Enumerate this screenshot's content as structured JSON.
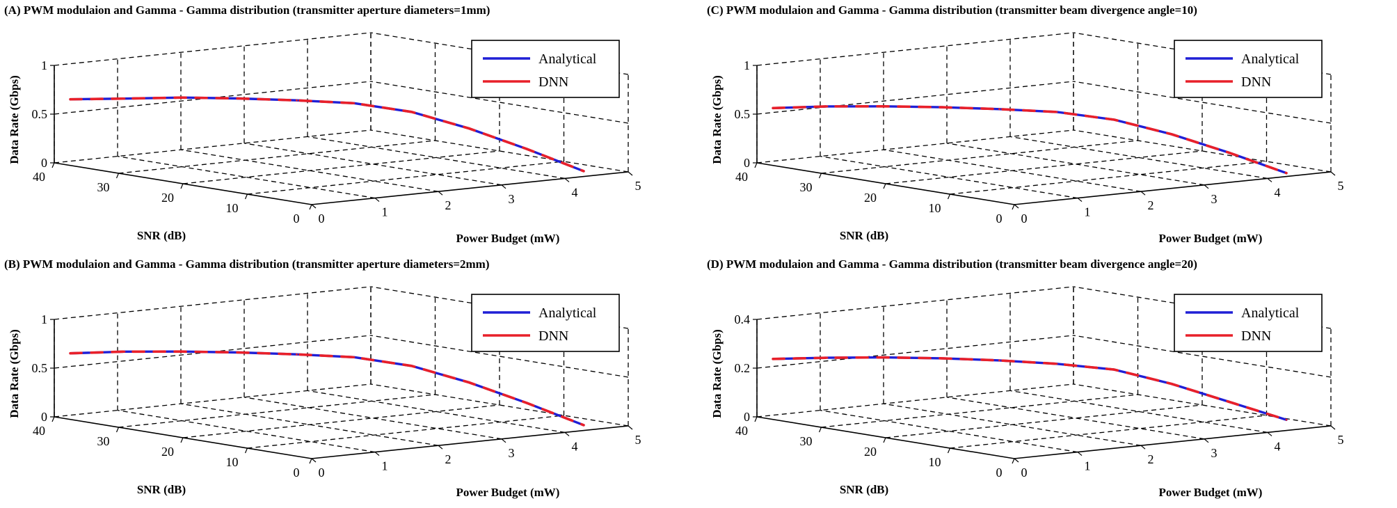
{
  "colors": {
    "analytical": "#1f1fd6",
    "dnn": "#e8202a"
  },
  "chart_data": [
    {
      "type": "line",
      "title": "(A) PWM modulaion and Gamma - Gamma distribution (transmitter aperture diameters=1mm)",
      "xlabel": "Power Budget (mW)",
      "ylabel": "SNR (dB)",
      "zlabel": "Data Rate (Gbps)",
      "xlim": [
        0,
        5
      ],
      "ylim": [
        0,
        40
      ],
      "zlim": [
        0,
        1
      ],
      "xticks": [
        "0",
        "1",
        "2",
        "3",
        "4",
        "5"
      ],
      "yticks": [
        "0",
        "10",
        "20",
        "30",
        "40"
      ],
      "zticks": [
        "0",
        "0.5",
        "1"
      ],
      "grid": true,
      "legend": "top-right",
      "x": [
        0.05,
        0.5,
        1.0,
        1.5,
        2.0,
        2.5,
        3.0,
        3.5,
        4.0,
        4.5
      ],
      "y": [
        38,
        34,
        30,
        26,
        22,
        18,
        14,
        10,
        6,
        2
      ],
      "series": [
        {
          "name": "Analytical",
          "values": [
            0.67,
            0.69,
            0.71,
            0.71,
            0.7,
            0.68,
            0.6,
            0.44,
            0.24,
            0.02
          ]
        },
        {
          "name": "DNN",
          "values": [
            0.67,
            0.69,
            0.71,
            0.71,
            0.7,
            0.68,
            0.6,
            0.44,
            0.24,
            0.02
          ]
        }
      ]
    },
    {
      "type": "line",
      "title": "(C) PWM modulaion and Gamma - Gamma distribution (transmitter beam divergence angle=10)",
      "xlabel": "Power Budget (mW)",
      "ylabel": "SNR (dB)",
      "zlabel": "Data Rate (Gbps)",
      "xlim": [
        0,
        5
      ],
      "ylim": [
        0,
        40
      ],
      "zlim": [
        0,
        1
      ],
      "xticks": [
        "0",
        "1",
        "2",
        "3",
        "4",
        "5"
      ],
      "yticks": [
        "0",
        "10",
        "20",
        "30",
        "40"
      ],
      "zticks": [
        "0",
        "0.5",
        "1"
      ],
      "grid": true,
      "legend": "top-right",
      "x": [
        0.05,
        0.5,
        1.0,
        1.5,
        2.0,
        2.5,
        3.0,
        3.5,
        4.0,
        4.5
      ],
      "y": [
        38,
        34,
        30,
        26,
        22,
        18,
        14,
        10,
        6,
        2
      ],
      "series": [
        {
          "name": "Analytical",
          "values": [
            0.58,
            0.61,
            0.62,
            0.62,
            0.61,
            0.59,
            0.52,
            0.38,
            0.2,
            0.0
          ]
        },
        {
          "name": "DNN",
          "values": [
            0.58,
            0.61,
            0.62,
            0.62,
            0.61,
            0.59,
            0.52,
            0.38,
            0.2,
            0.0
          ]
        }
      ]
    },
    {
      "type": "line",
      "title": "(B) PWM modulaion and Gamma - Gamma distribution (transmitter aperture diameters=2mm)",
      "xlabel": "Power Budget (mW)",
      "ylabel": "SNR (dB)",
      "zlabel": "Data Rate (Gbps)",
      "xlim": [
        0,
        5
      ],
      "ylim": [
        0,
        40
      ],
      "zlim": [
        0,
        1
      ],
      "xticks": [
        "0",
        "1",
        "2",
        "3",
        "4",
        "5"
      ],
      "yticks": [
        "0",
        "10",
        "20",
        "30",
        "40"
      ],
      "zticks": [
        "0",
        "0.5",
        "1"
      ],
      "grid": true,
      "legend": "top-right",
      "x": [
        0.05,
        0.5,
        1.0,
        1.5,
        2.0,
        2.5,
        3.0,
        3.5,
        4.0,
        4.5
      ],
      "y": [
        38,
        34,
        30,
        26,
        22,
        18,
        14,
        10,
        6,
        2
      ],
      "series": [
        {
          "name": "Analytical",
          "values": [
            0.67,
            0.7,
            0.71,
            0.71,
            0.7,
            0.68,
            0.6,
            0.44,
            0.24,
            0.02
          ]
        },
        {
          "name": "DNN",
          "values": [
            0.67,
            0.7,
            0.71,
            0.71,
            0.7,
            0.68,
            0.6,
            0.44,
            0.24,
            0.02
          ]
        }
      ]
    },
    {
      "type": "line",
      "title": "(D) PWM modulaion and Gamma - Gamma distribution (transmitter beam divergence angle=20)",
      "xlabel": "Power Budget (mW)",
      "ylabel": "SNR (dB)",
      "zlabel": "Data Rate (Gbps)",
      "xlim": [
        0,
        5
      ],
      "ylim": [
        0,
        40
      ],
      "zlim": [
        0,
        0.4
      ],
      "xticks": [
        "0",
        "1",
        "2",
        "3",
        "4",
        "5"
      ],
      "yticks": [
        "0",
        "10",
        "20",
        "30",
        "40"
      ],
      "zticks": [
        "0",
        "0.2",
        "0.4"
      ],
      "grid": true,
      "legend": "top-right",
      "x": [
        0.05,
        0.5,
        1.0,
        1.5,
        2.0,
        2.5,
        3.0,
        3.5,
        4.0,
        4.5
      ],
      "y": [
        38,
        34,
        30,
        26,
        22,
        18,
        14,
        10,
        6,
        2
      ],
      "series": [
        {
          "name": "Analytical",
          "values": [
            0.245,
            0.255,
            0.26,
            0.26,
            0.255,
            0.245,
            0.225,
            0.17,
            0.1,
            0.03
          ]
        },
        {
          "name": "DNN",
          "values": [
            0.245,
            0.255,
            0.26,
            0.26,
            0.255,
            0.245,
            0.225,
            0.17,
            0.1,
            0.03
          ]
        }
      ]
    }
  ]
}
